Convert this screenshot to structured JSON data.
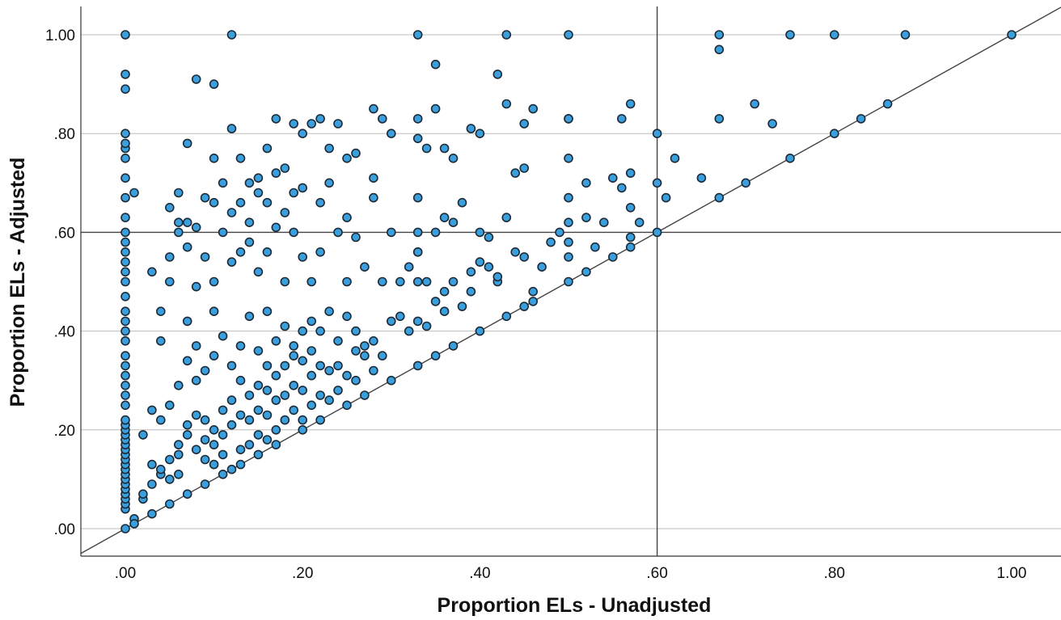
{
  "chart_data": {
    "type": "scatter",
    "xlabel": "Proportion ELs - Unadjusted",
    "ylabel": "Proportion ELs - Adjusted",
    "xlim": [
      -0.05,
      1.05
    ],
    "ylim": [
      -0.05,
      1.05
    ],
    "x_ticks": [
      ".00",
      ".20",
      ".40",
      ".60",
      ".80",
      "1.00"
    ],
    "y_ticks": [
      ".00",
      ".20",
      ".40",
      ".60",
      ".80",
      "1.00"
    ],
    "x_tick_values": [
      0,
      0.2,
      0.4,
      0.6,
      0.8,
      1.0
    ],
    "y_tick_values": [
      0,
      0.2,
      0.4,
      0.6,
      0.8,
      1.0
    ],
    "grid": "horizontal",
    "reference_lines": {
      "x": 0.6,
      "y": 0.6,
      "diagonal": "y = x"
    },
    "marker_color": "#3a9fdc",
    "marker_edge_color": "#1d2a36",
    "points": [
      [
        0,
        0
      ],
      [
        0,
        0.04
      ],
      [
        0,
        0.05
      ],
      [
        0,
        0.06
      ],
      [
        0,
        0.07
      ],
      [
        0,
        0.08
      ],
      [
        0,
        0.09
      ],
      [
        0,
        0.1
      ],
      [
        0,
        0.11
      ],
      [
        0,
        0.12
      ],
      [
        0,
        0.13
      ],
      [
        0,
        0.14
      ],
      [
        0,
        0.15
      ],
      [
        0,
        0.16
      ],
      [
        0,
        0.17
      ],
      [
        0,
        0.18
      ],
      [
        0,
        0.19
      ],
      [
        0,
        0.2
      ],
      [
        0,
        0.21
      ],
      [
        0,
        0.22
      ],
      [
        0,
        0.25
      ],
      [
        0,
        0.27
      ],
      [
        0,
        0.29
      ],
      [
        0,
        0.31
      ],
      [
        0,
        0.33
      ],
      [
        0,
        0.35
      ],
      [
        0,
        0.38
      ],
      [
        0,
        0.4
      ],
      [
        0,
        0.42
      ],
      [
        0,
        0.44
      ],
      [
        0,
        0.47
      ],
      [
        0,
        0.5
      ],
      [
        0,
        0.52
      ],
      [
        0,
        0.54
      ],
      [
        0,
        0.56
      ],
      [
        0,
        0.58
      ],
      [
        0,
        0.6
      ],
      [
        0,
        0.63
      ],
      [
        0,
        0.67
      ],
      [
        0,
        0.71
      ],
      [
        0,
        0.75
      ],
      [
        0,
        0.77
      ],
      [
        0,
        0.78
      ],
      [
        0,
        0.8
      ],
      [
        0,
        0.89
      ],
      [
        0,
        0.92
      ],
      [
        0,
        1.0
      ],
      [
        0.01,
        0.68
      ],
      [
        0.01,
        0.02
      ],
      [
        0.02,
        0.06
      ],
      [
        0.02,
        0.07
      ],
      [
        0.03,
        0.09
      ],
      [
        0.03,
        0.13
      ],
      [
        0.04,
        0.11
      ],
      [
        0.04,
        0.12
      ],
      [
        0.05,
        0.1
      ],
      [
        0.05,
        0.14
      ],
      [
        0.06,
        0.11
      ],
      [
        0.06,
        0.15
      ],
      [
        0.06,
        0.17
      ],
      [
        0.07,
        0.19
      ],
      [
        0.07,
        0.21
      ],
      [
        0.08,
        0.16
      ],
      [
        0.08,
        0.23
      ],
      [
        0.09,
        0.14
      ],
      [
        0.09,
        0.18
      ],
      [
        0.09,
        0.22
      ],
      [
        0.1,
        0.13
      ],
      [
        0.1,
        0.17
      ],
      [
        0.1,
        0.2
      ],
      [
        0.11,
        0.15
      ],
      [
        0.11,
        0.19
      ],
      [
        0.11,
        0.24
      ],
      [
        0.12,
        0.12
      ],
      [
        0.12,
        0.21
      ],
      [
        0.12,
        0.26
      ],
      [
        0.13,
        0.16
      ],
      [
        0.13,
        0.23
      ],
      [
        0.13,
        0.3
      ],
      [
        0.14,
        0.17
      ],
      [
        0.14,
        0.22
      ],
      [
        0.14,
        0.27
      ],
      [
        0.15,
        0.19
      ],
      [
        0.15,
        0.24
      ],
      [
        0.15,
        0.29
      ],
      [
        0.16,
        0.18
      ],
      [
        0.16,
        0.23
      ],
      [
        0.16,
        0.28
      ],
      [
        0.16,
        0.33
      ],
      [
        0.17,
        0.2
      ],
      [
        0.17,
        0.26
      ],
      [
        0.17,
        0.31
      ],
      [
        0.18,
        0.22
      ],
      [
        0.18,
        0.27
      ],
      [
        0.18,
        0.33
      ],
      [
        0.19,
        0.24
      ],
      [
        0.19,
        0.29
      ],
      [
        0.19,
        0.35
      ],
      [
        0.2,
        0.22
      ],
      [
        0.2,
        0.28
      ],
      [
        0.2,
        0.34
      ],
      [
        0.21,
        0.25
      ],
      [
        0.21,
        0.31
      ],
      [
        0.21,
        0.36
      ],
      [
        0.22,
        0.27
      ],
      [
        0.22,
        0.33
      ],
      [
        0.23,
        0.26
      ],
      [
        0.23,
        0.32
      ],
      [
        0.24,
        0.28
      ],
      [
        0.24,
        0.33
      ],
      [
        0.25,
        0.31
      ],
      [
        0.26,
        0.3
      ],
      [
        0.26,
        0.36
      ],
      [
        0.27,
        0.35
      ],
      [
        0.28,
        0.32
      ],
      [
        0.28,
        0.38
      ],
      [
        0.02,
        0.19
      ],
      [
        0.03,
        0.52
      ],
      [
        0.04,
        0.38
      ],
      [
        0.04,
        0.44
      ],
      [
        0.05,
        0.5
      ],
      [
        0.05,
        0.55
      ],
      [
        0.05,
        0.65
      ],
      [
        0.06,
        0.68
      ],
      [
        0.06,
        0.6
      ],
      [
        0.07,
        0.42
      ],
      [
        0.07,
        0.57
      ],
      [
        0.07,
        0.62
      ],
      [
        0.08,
        0.37
      ],
      [
        0.08,
        0.49
      ],
      [
        0.08,
        0.61
      ],
      [
        0.09,
        0.67
      ],
      [
        0.09,
        0.55
      ],
      [
        0.1,
        0.44
      ],
      [
        0.1,
        0.5
      ],
      [
        0.1,
        0.66
      ],
      [
        0.11,
        0.6
      ],
      [
        0.11,
        0.7
      ],
      [
        0.12,
        0.54
      ],
      [
        0.12,
        0.64
      ],
      [
        0.13,
        0.56
      ],
      [
        0.13,
        0.66
      ],
      [
        0.14,
        0.58
      ],
      [
        0.14,
        0.62
      ],
      [
        0.14,
        0.7
      ],
      [
        0.15,
        0.52
      ],
      [
        0.15,
        0.68
      ],
      [
        0.16,
        0.56
      ],
      [
        0.16,
        0.66
      ],
      [
        0.17,
        0.61
      ],
      [
        0.17,
        0.72
      ],
      [
        0.18,
        0.5
      ],
      [
        0.18,
        0.64
      ],
      [
        0.19,
        0.6
      ],
      [
        0.19,
        0.68
      ],
      [
        0.2,
        0.55
      ],
      [
        0.2,
        0.69
      ],
      [
        0.21,
        0.5
      ],
      [
        0.22,
        0.56
      ],
      [
        0.22,
        0.66
      ],
      [
        0.23,
        0.7
      ],
      [
        0.24,
        0.6
      ],
      [
        0.25,
        0.5
      ],
      [
        0.25,
        0.63
      ],
      [
        0.26,
        0.59
      ],
      [
        0.27,
        0.53
      ],
      [
        0.28,
        0.67
      ],
      [
        0.29,
        0.5
      ],
      [
        0.3,
        0.6
      ],
      [
        0.31,
        0.5
      ],
      [
        0.32,
        0.53
      ],
      [
        0.33,
        0.56
      ],
      [
        0.34,
        0.5
      ],
      [
        0.35,
        0.6
      ],
      [
        0.36,
        0.63
      ],
      [
        0.37,
        0.62
      ],
      [
        0.38,
        0.66
      ],
      [
        0.39,
        0.52
      ],
      [
        0.4,
        0.54
      ],
      [
        0.41,
        0.53
      ],
      [
        0.42,
        0.5
      ],
      [
        0.43,
        0.63
      ],
      [
        0.44,
        0.56
      ],
      [
        0.45,
        0.55
      ],
      [
        0.46,
        0.48
      ],
      [
        0.47,
        0.53
      ],
      [
        0.06,
        0.62
      ],
      [
        0.07,
        0.78
      ],
      [
        0.08,
        0.91
      ],
      [
        0.1,
        0.9
      ],
      [
        0.1,
        0.75
      ],
      [
        0.12,
        0.81
      ],
      [
        0.13,
        0.75
      ],
      [
        0.15,
        0.71
      ],
      [
        0.16,
        0.77
      ],
      [
        0.17,
        0.83
      ],
      [
        0.18,
        0.73
      ],
      [
        0.19,
        0.82
      ],
      [
        0.2,
        0.8
      ],
      [
        0.21,
        0.82
      ],
      [
        0.22,
        0.83
      ],
      [
        0.23,
        0.77
      ],
      [
        0.24,
        0.82
      ],
      [
        0.25,
        0.75
      ],
      [
        0.26,
        0.76
      ],
      [
        0.28,
        0.85
      ],
      [
        0.28,
        0.71
      ],
      [
        0.29,
        0.83
      ],
      [
        0.3,
        0.8
      ],
      [
        0.33,
        0.83
      ],
      [
        0.33,
        0.79
      ],
      [
        0.34,
        0.77
      ],
      [
        0.35,
        0.85
      ],
      [
        0.35,
        0.94
      ],
      [
        0.36,
        0.77
      ],
      [
        0.37,
        0.75
      ],
      [
        0.39,
        0.81
      ],
      [
        0.4,
        0.8
      ],
      [
        0.42,
        0.92
      ],
      [
        0.43,
        0.86
      ],
      [
        0.44,
        0.72
      ],
      [
        0.45,
        0.73
      ],
      [
        0.45,
        0.82
      ],
      [
        0.46,
        0.85
      ],
      [
        0.5,
        0.83
      ],
      [
        0.5,
        0.75
      ],
      [
        0.52,
        0.7
      ],
      [
        0.55,
        0.71
      ],
      [
        0.57,
        0.86
      ],
      [
        0.57,
        0.72
      ],
      [
        0.56,
        0.83
      ],
      [
        0.58,
        0.62
      ],
      [
        0.12,
        1.0
      ],
      [
        0.33,
        1.0
      ],
      [
        0.43,
        1.0
      ],
      [
        0.5,
        1.0
      ],
      [
        0.67,
        1.0
      ],
      [
        0.67,
        0.97
      ],
      [
        0.75,
        1.0
      ],
      [
        0.8,
        1.0
      ],
      [
        0.88,
        1.0
      ],
      [
        1.0,
        1.0
      ],
      [
        0.48,
        0.58
      ],
      [
        0.49,
        0.6
      ],
      [
        0.5,
        0.67
      ],
      [
        0.5,
        0.62
      ],
      [
        0.5,
        0.58
      ],
      [
        0.5,
        0.55
      ],
      [
        0.52,
        0.63
      ],
      [
        0.53,
        0.57
      ],
      [
        0.54,
        0.62
      ],
      [
        0.56,
        0.69
      ],
      [
        0.57,
        0.65
      ],
      [
        0.57,
        0.59
      ],
      [
        0.6,
        0.7
      ],
      [
        0.61,
        0.67
      ],
      [
        0.62,
        0.75
      ],
      [
        0.65,
        0.71
      ],
      [
        0.67,
        0.83
      ],
      [
        0.71,
        0.86
      ],
      [
        0.73,
        0.82
      ],
      [
        0.33,
        0.67
      ],
      [
        0.33,
        0.6
      ],
      [
        0.33,
        0.56
      ],
      [
        0.33,
        0.5
      ],
      [
        0.33,
        0.42
      ],
      [
        0.35,
        0.46
      ],
      [
        0.36,
        0.44
      ],
      [
        0.36,
        0.48
      ],
      [
        0.37,
        0.5
      ],
      [
        0.38,
        0.45
      ],
      [
        0.39,
        0.48
      ],
      [
        0.4,
        0.6
      ],
      [
        0.41,
        0.59
      ],
      [
        0.42,
        0.51
      ],
      [
        0.31,
        0.43
      ],
      [
        0.32,
        0.4
      ],
      [
        0.34,
        0.41
      ],
      [
        0.29,
        0.35
      ],
      [
        0.3,
        0.42
      ],
      [
        0.27,
        0.37
      ],
      [
        0.26,
        0.4
      ],
      [
        0.25,
        0.43
      ],
      [
        0.24,
        0.38
      ],
      [
        0.23,
        0.44
      ],
      [
        0.22,
        0.4
      ],
      [
        0.21,
        0.42
      ],
      [
        0.2,
        0.4
      ],
      [
        0.19,
        0.37
      ],
      [
        0.18,
        0.41
      ],
      [
        0.17,
        0.38
      ],
      [
        0.16,
        0.44
      ],
      [
        0.15,
        0.36
      ],
      [
        0.14,
        0.43
      ],
      [
        0.13,
        0.37
      ],
      [
        0.12,
        0.33
      ],
      [
        0.11,
        0.39
      ],
      [
        0.1,
        0.35
      ],
      [
        0.09,
        0.32
      ],
      [
        0.08,
        0.3
      ],
      [
        0.07,
        0.34
      ],
      [
        0.06,
        0.29
      ],
      [
        0.05,
        0.25
      ],
      [
        0.04,
        0.22
      ],
      [
        0.03,
        0.24
      ],
      [
        0.01,
        0.01
      ],
      [
        0.03,
        0.03
      ],
      [
        0.05,
        0.05
      ],
      [
        0.07,
        0.07
      ],
      [
        0.09,
        0.09
      ],
      [
        0.11,
        0.11
      ],
      [
        0.13,
        0.13
      ],
      [
        0.15,
        0.15
      ],
      [
        0.17,
        0.17
      ],
      [
        0.2,
        0.2
      ],
      [
        0.22,
        0.22
      ],
      [
        0.25,
        0.25
      ],
      [
        0.27,
        0.27
      ],
      [
        0.3,
        0.3
      ],
      [
        0.33,
        0.33
      ],
      [
        0.35,
        0.35
      ],
      [
        0.37,
        0.37
      ],
      [
        0.4,
        0.4
      ],
      [
        0.43,
        0.43
      ],
      [
        0.45,
        0.45
      ],
      [
        0.46,
        0.46
      ],
      [
        0.5,
        0.5
      ],
      [
        0.52,
        0.52
      ],
      [
        0.55,
        0.55
      ],
      [
        0.57,
        0.57
      ],
      [
        0.6,
        0.6
      ],
      [
        0.67,
        0.67
      ],
      [
        0.7,
        0.7
      ],
      [
        0.75,
        0.75
      ],
      [
        0.8,
        0.8
      ],
      [
        0.83,
        0.83
      ],
      [
        0.86,
        0.86
      ],
      [
        0.6,
        0.8
      ],
      [
        0.5,
        0.83
      ]
    ]
  }
}
